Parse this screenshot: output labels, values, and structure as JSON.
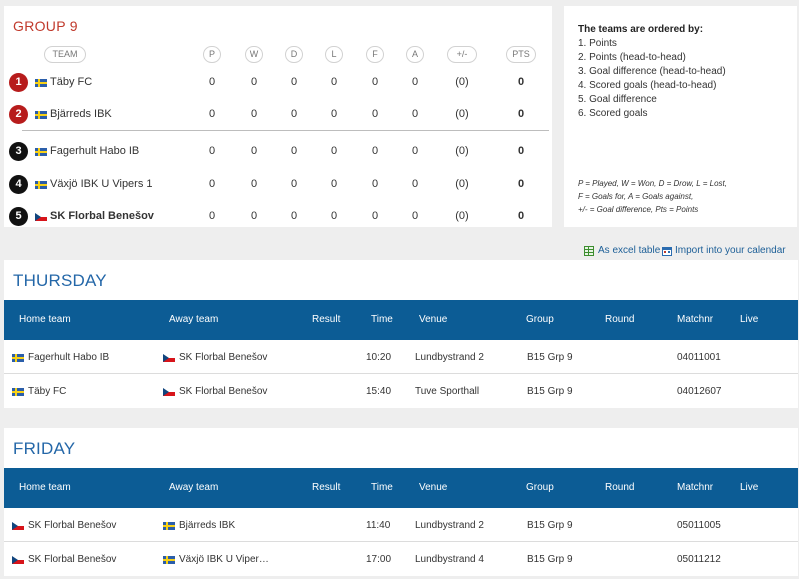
{
  "group": {
    "title": "GROUP 9",
    "columns": [
      "TEAM",
      "P",
      "W",
      "D",
      "L",
      "F",
      "A",
      "+/-",
      "PTS"
    ],
    "rows": [
      {
        "rank": "1",
        "badge_color": "#b71c1c",
        "flag": "se",
        "team": "Täby FC",
        "p": "0",
        "w": "0",
        "d": "0",
        "l": "0",
        "f": "0",
        "a": "0",
        "gd": "(0)",
        "pts": "0",
        "bold": false
      },
      {
        "rank": "2",
        "badge_color": "#b71c1c",
        "flag": "se",
        "team": "Bjärreds IBK",
        "p": "0",
        "w": "0",
        "d": "0",
        "l": "0",
        "f": "0",
        "a": "0",
        "gd": "(0)",
        "pts": "0",
        "bold": false
      },
      {
        "rank": "3",
        "badge_color": "#111111",
        "flag": "se",
        "team": "Fagerhult Habo IB",
        "p": "0",
        "w": "0",
        "d": "0",
        "l": "0",
        "f": "0",
        "a": "0",
        "gd": "(0)",
        "pts": "0",
        "bold": false
      },
      {
        "rank": "4",
        "badge_color": "#111111",
        "flag": "se",
        "team": "Växjö IBK U Vipers 1",
        "p": "0",
        "w": "0",
        "d": "0",
        "l": "0",
        "f": "0",
        "a": "0",
        "gd": "(0)",
        "pts": "0",
        "bold": false
      },
      {
        "rank": "5",
        "badge_color": "#111111",
        "flag": "cz",
        "team": "SK Florbal Benešov",
        "p": "0",
        "w": "0",
        "d": "0",
        "l": "0",
        "f": "0",
        "a": "0",
        "gd": "(0)",
        "pts": "0",
        "bold": true
      }
    ]
  },
  "rules": {
    "title": "The teams are ordered by:",
    "items": [
      "1. Points",
      "2. Points (head-to-head)",
      "3. Goal difference (head-to-head)",
      "4. Scored goals (head-to-head)",
      "5. Goal difference",
      "6. Scored goals"
    ],
    "legend": [
      "P = Played, W = Won, D = Drow, L = Lost,",
      "F = Goals for, A = Goals against,",
      "+/- = Goal difference, Pts = Points"
    ]
  },
  "links": {
    "excel": "As excel table",
    "calendar": "Import into your calendar",
    "excel_icon": "spreadsheet-icon",
    "calendar_icon": "calendar-icon"
  },
  "schedule": {
    "columns": [
      "Home team",
      "Away team",
      "Result",
      "Time",
      "Venue",
      "Group",
      "Round",
      "Matchnr",
      "Live"
    ],
    "days": [
      {
        "title": "THURSDAY",
        "matches": [
          {
            "home": "Fagerhult Habo IB",
            "home_flag": "se",
            "away": "SK Florbal Benešov",
            "away_flag": "cz",
            "result": "",
            "time": "10:20",
            "venue": "Lundbystrand 2",
            "group": "B15 Grp 9",
            "round": "",
            "matchnr": "04011001",
            "live": ""
          },
          {
            "home": "Täby FC",
            "home_flag": "se",
            "away": "SK Florbal Benešov",
            "away_flag": "cz",
            "result": "",
            "time": "15:40",
            "venue": "Tuve Sporthall",
            "group": "B15 Grp 9",
            "round": "",
            "matchnr": "04012607",
            "live": ""
          }
        ]
      },
      {
        "title": "FRIDAY",
        "matches": [
          {
            "home": "SK Florbal Benešov",
            "home_flag": "cz",
            "away": "Bjärreds IBK",
            "away_flag": "se",
            "result": "",
            "time": "11:40",
            "venue": "Lundbystrand 2",
            "group": "B15 Grp 9",
            "round": "",
            "matchnr": "05011005",
            "live": ""
          },
          {
            "home": "SK Florbal Benešov",
            "home_flag": "cz",
            "away": "Växjö IBK U Viper…",
            "away_flag": "se",
            "result": "",
            "time": "17:00",
            "venue": "Lundbystrand 4",
            "group": "B15 Grp 9",
            "round": "",
            "matchnr": "05011212",
            "live": ""
          }
        ]
      }
    ]
  },
  "colors": {
    "accent_red": "#c0392b",
    "header_blue": "#0c5c95",
    "title_blue": "#2467a8",
    "link_blue": "#1d5f97"
  }
}
